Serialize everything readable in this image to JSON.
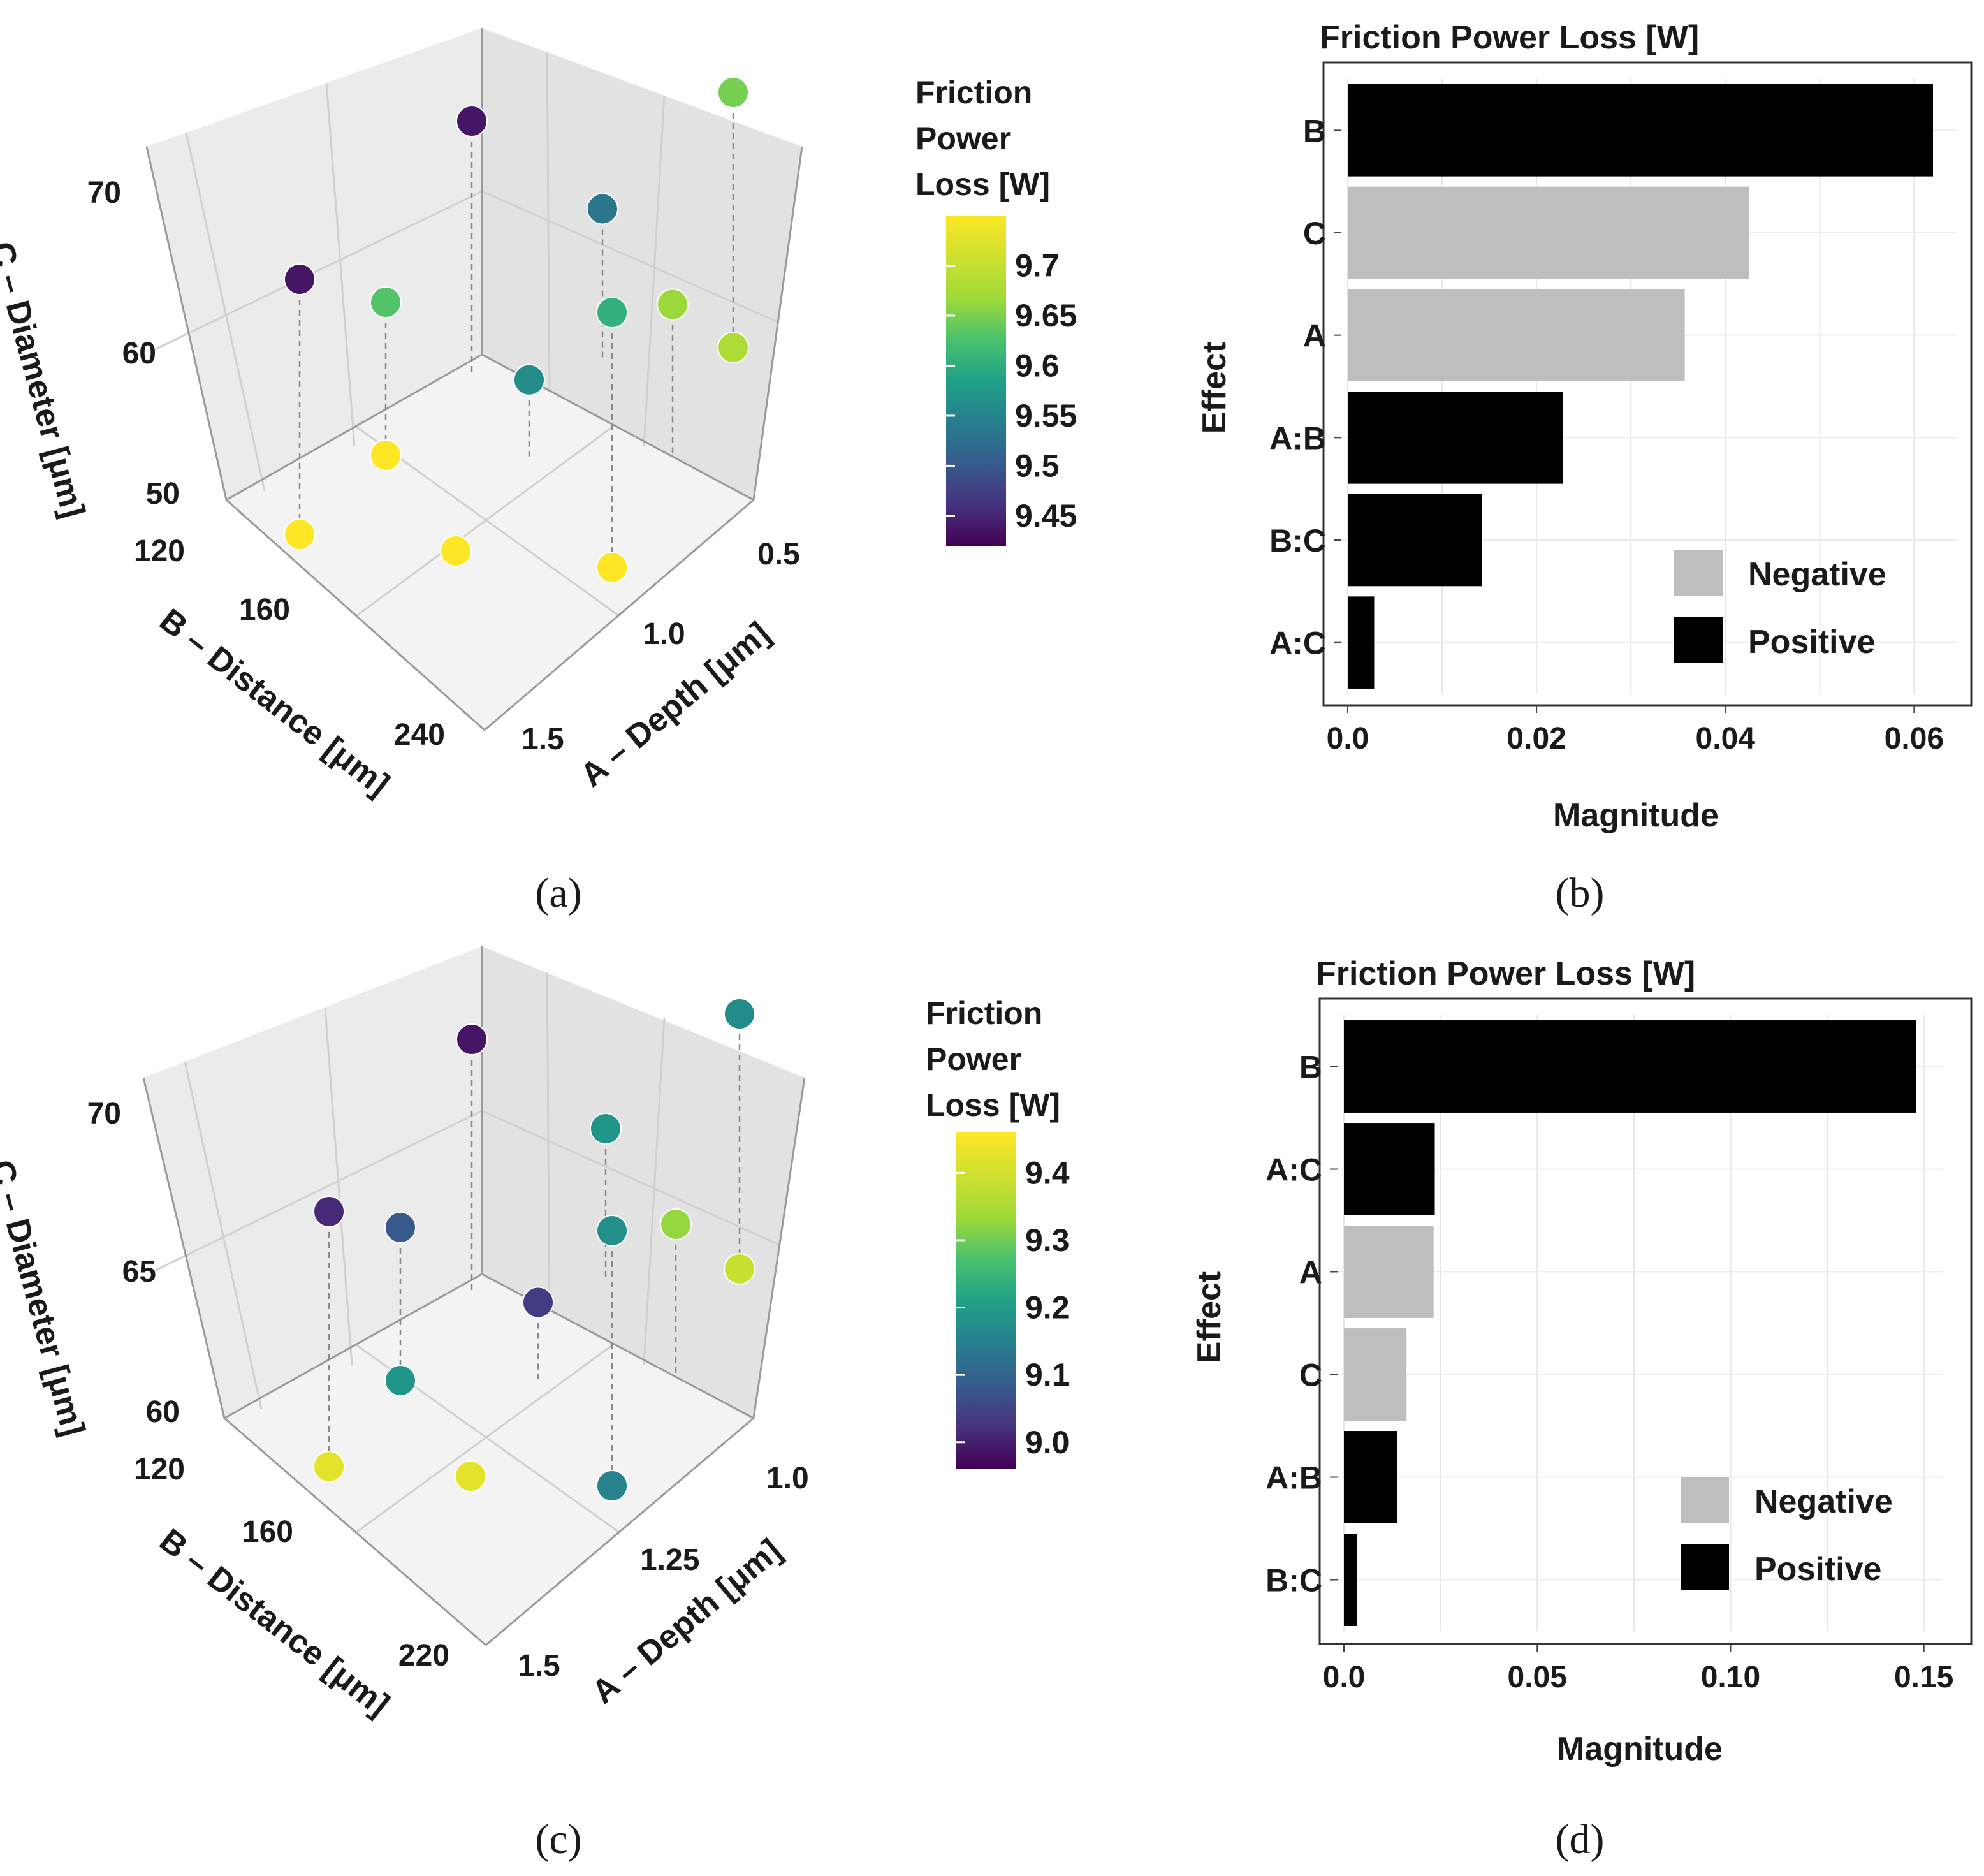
{
  "chart_data": [
    {
      "panel": "(a)",
      "type": "scatter3d",
      "legend_title": [
        "Friction",
        "Power",
        "Loss [W]"
      ],
      "colorbar_range": [
        9.42,
        9.75
      ],
      "colorbar_ticks": [
        9.45,
        9.5,
        9.55,
        9.6,
        9.65,
        9.7
      ],
      "colorbar_tick_labels": [
        "9.45",
        "9.5",
        "9.55",
        "9.6",
        "9.65",
        "9.7"
      ],
      "axes": {
        "a": {
          "label": "A – Depth [μm]",
          "ticks": [
            0.5,
            1.0,
            1.5
          ],
          "tick_labels": [
            "0.5",
            "1.0",
            "1.5"
          ]
        },
        "b": {
          "label": "B – Distance [μm]",
          "ticks": [
            120,
            160,
            240
          ],
          "tick_labels": [
            "120",
            "160",
            "240"
          ]
        },
        "c": {
          "label": "C – Diameter [μm]",
          "ticks": [
            50,
            60,
            70
          ],
          "tick_labels": [
            "50",
            "60",
            "70"
          ]
        }
      },
      "points": [
        {
          "a": 0,
          "b": 0,
          "c": 1,
          "value": 9.44
        },
        {
          "a": 0,
          "b": 0.5,
          "c": 0.6,
          "value": 9.55
        },
        {
          "a": 0,
          "b": 1,
          "c": 1,
          "value": 9.68
        },
        {
          "a": 0.5,
          "b": 0,
          "c": 0.6,
          "value": 9.66
        },
        {
          "a": 1,
          "b": 0,
          "c": 1,
          "value": 9.44
        },
        {
          "a": 0,
          "b": 1,
          "c": 0,
          "value": 9.71
        },
        {
          "a": 0.5,
          "b": 1,
          "c": 0.6,
          "value": 9.7
        },
        {
          "a": 1,
          "b": 1,
          "c": 1,
          "value": 9.63
        },
        {
          "a": 0.5,
          "b": 0,
          "c": 0,
          "value": 9.75
        },
        {
          "a": 0.5,
          "b": 0.5,
          "c": 0.3,
          "value": 9.58
        },
        {
          "a": 1,
          "b": 0.5,
          "c": 0,
          "value": 9.75
        },
        {
          "a": 1,
          "b": 0,
          "c": 0,
          "value": 9.75
        },
        {
          "a": 1,
          "b": 1,
          "c": 0,
          "value": 9.75
        }
      ]
    },
    {
      "panel": "(b)",
      "type": "bar",
      "orientation": "horizontal",
      "title": "Friction Power Loss [W]",
      "xlabel": "Magnitude",
      "ylabel": "Effect",
      "xlim": [
        0,
        0.0645
      ],
      "xticks": [
        0.0,
        0.02,
        0.04,
        0.06
      ],
      "xtick_labels": [
        "0.0",
        "0.02",
        "0.04",
        "0.06"
      ],
      "categories": [
        "B",
        "C",
        "A",
        "A:B",
        "B:C",
        "A:C"
      ],
      "values": [
        0.062,
        0.0425,
        0.0357,
        0.0228,
        0.0142,
        0.0028
      ],
      "signs": [
        "Positive",
        "Negative",
        "Negative",
        "Positive",
        "Positive",
        "Positive"
      ],
      "legend": [
        {
          "label": "Negative",
          "color": "#bebebe"
        },
        {
          "label": "Positive",
          "color": "#000000"
        }
      ],
      "legend_position": "bottom-right"
    },
    {
      "panel": "(c)",
      "type": "scatter3d",
      "legend_title": [
        "Friction",
        "Power",
        "Loss [W]"
      ],
      "colorbar_range": [
        8.96,
        9.46
      ],
      "colorbar_ticks": [
        9.0,
        9.1,
        9.2,
        9.3,
        9.4
      ],
      "colorbar_tick_labels": [
        "9.0",
        "9.1",
        "9.2",
        "9.3",
        "9.4"
      ],
      "axes": {
        "a": {
          "label": "A – Depth [μm]",
          "ticks": [
            1.0,
            1.25,
            1.5
          ],
          "tick_labels": [
            "1.0",
            "1.25",
            "1.5"
          ]
        },
        "b": {
          "label": "B – Distance [μm]",
          "ticks": [
            120,
            160,
            220
          ],
          "tick_labels": [
            "120",
            "160",
            "220"
          ]
        },
        "c": {
          "label": "C – Diameter [μm]",
          "ticks": [
            60,
            65,
            70
          ],
          "tick_labels": [
            "60",
            "65",
            "70"
          ]
        }
      },
      "points": [
        {
          "a": 0,
          "b": 0,
          "c": 1,
          "value": 8.99
        },
        {
          "a": 0,
          "b": 0.5,
          "c": 0.6,
          "value": 9.22
        },
        {
          "a": 0,
          "b": 1,
          "c": 1,
          "value": 9.2
        },
        {
          "a": 0.5,
          "b": 0,
          "c": 0.6,
          "value": 9.1
        },
        {
          "a": 1,
          "b": 0,
          "c": 1,
          "value": 9.02
        },
        {
          "a": 0,
          "b": 1,
          "c": 0,
          "value": 9.42
        },
        {
          "a": 0.5,
          "b": 1,
          "c": 0.6,
          "value": 9.38
        },
        {
          "a": 1,
          "b": 1,
          "c": 1,
          "value": 9.21
        },
        {
          "a": 0.5,
          "b": 0,
          "c": 0,
          "value": 9.22
        },
        {
          "a": 0.5,
          "b": 0.5,
          "c": 0.3,
          "value": 9.05
        },
        {
          "a": 1,
          "b": 0.5,
          "c": 0,
          "value": 9.44
        },
        {
          "a": 1,
          "b": 0,
          "c": 0,
          "value": 9.44
        },
        {
          "a": 1,
          "b": 1,
          "c": 0,
          "value": 9.18
        }
      ]
    },
    {
      "panel": "(d)",
      "type": "bar",
      "orientation": "horizontal",
      "title": "Friction Power Loss [W]",
      "xlabel": "Magnitude",
      "ylabel": "Effect",
      "xlim": [
        0,
        0.155
      ],
      "xticks": [
        0.0,
        0.05,
        0.1,
        0.15
      ],
      "xtick_labels": [
        "0.0",
        "0.05",
        "0.10",
        "0.15"
      ],
      "categories": [
        "B",
        "A:C",
        "A",
        "C",
        "A:B",
        "B:C"
      ],
      "values": [
        0.148,
        0.0235,
        0.0232,
        0.0162,
        0.0138,
        0.0033
      ],
      "signs": [
        "Positive",
        "Positive",
        "Negative",
        "Negative",
        "Positive",
        "Positive"
      ],
      "legend": [
        {
          "label": "Negative",
          "color": "#bebebe"
        },
        {
          "label": "Positive",
          "color": "#000000"
        }
      ],
      "legend_position": "bottom-right"
    }
  ],
  "captions": [
    "(a)",
    "(b)",
    "(c)",
    "(d)"
  ],
  "colors": {
    "positive": "#000000",
    "negative": "#bebebe",
    "pane": "#ebebeb",
    "grid": "#c8c8c8"
  }
}
